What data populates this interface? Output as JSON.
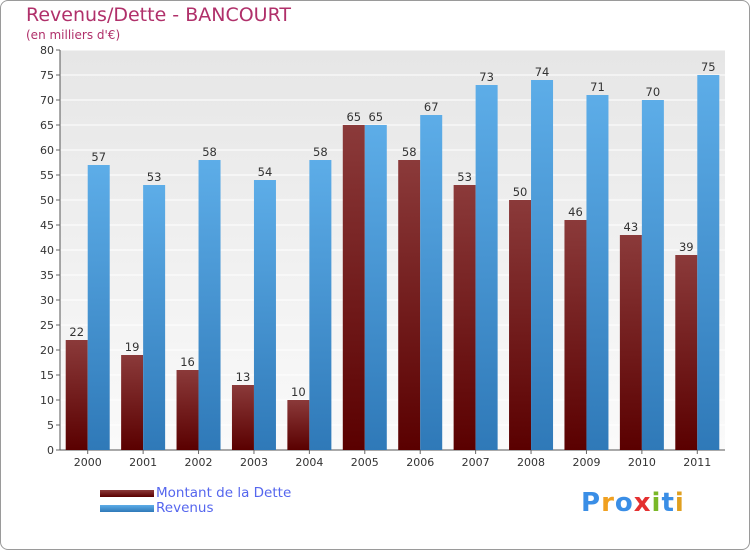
{
  "colors": {
    "dette_top": "#8b3a3a",
    "dette_bottom": "#5a0000",
    "revenus_top": "#5dade8",
    "revenus_bottom": "#2f79b8",
    "plot_bg_top": "#e6e6e6",
    "plot_bg_bottom": "#fafafa",
    "grid": "#ffffff",
    "axis_text": "#333333",
    "title": "#b0306a",
    "legend_text": "#5566ee"
  },
  "chart_data": {
    "type": "bar",
    "title": "Revenus/Dette - BANCOURT",
    "subtitle": "(en milliers d'€)",
    "categories": [
      "2000",
      "2001",
      "2002",
      "2003",
      "2004",
      "2005",
      "2006",
      "2007",
      "2008",
      "2009",
      "2010",
      "2011"
    ],
    "series": [
      {
        "name": "Montant de la Dette",
        "values": [
          22,
          19,
          16,
          13,
          10,
          65,
          58,
          53,
          50,
          46,
          43,
          39
        ]
      },
      {
        "name": "Revenus",
        "values": [
          57,
          53,
          58,
          54,
          58,
          65,
          67,
          73,
          74,
          71,
          70,
          75
        ]
      }
    ],
    "ylim": [
      0,
      80
    ],
    "yticks": [
      0,
      5,
      10,
      15,
      20,
      25,
      30,
      35,
      40,
      45,
      50,
      55,
      60,
      65,
      70,
      75,
      80
    ],
    "grid": true,
    "legend": "bottom-left"
  },
  "logo": {
    "letters": [
      "P",
      "r",
      "o",
      "x",
      "i",
      "t",
      "i"
    ],
    "colors": [
      "#3a8ee6",
      "#f0a020",
      "#3a8ee6",
      "#e43030",
      "#7ab828",
      "#3a8ee6",
      "#e0a020"
    ]
  }
}
